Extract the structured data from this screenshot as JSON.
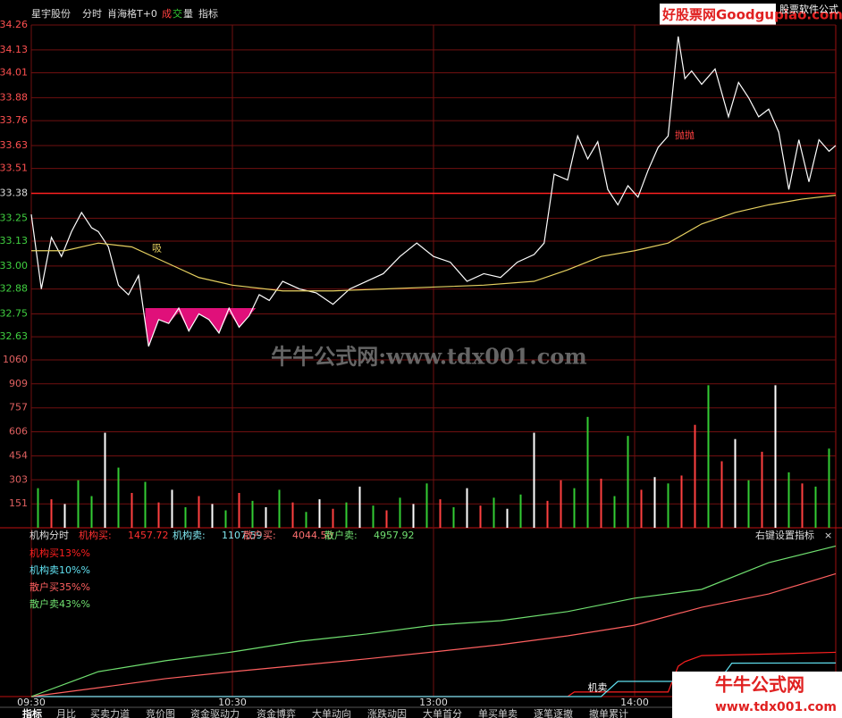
{
  "header": {
    "stock": "星宇股份",
    "view": "分时",
    "formula": "肖海格T+0",
    "volume_chars": [
      "成",
      "交",
      "量"
    ],
    "indicator": "指标",
    "site": "好股票网Goodgupiao.com",
    "site_note": "股票软件公式"
  },
  "watermark": "牛牛公式网:www.tdx001.com",
  "logo": {
    "name": "牛牛公式网",
    "url": "www.tdx001.com"
  },
  "tabs": [
    "指标",
    "月比",
    "买卖力道",
    "竞价图",
    "资金驱动力",
    "资金博弈",
    "大单动向",
    "涨跌动因",
    "大单首分",
    "单买单卖",
    "逐笔逐撤",
    "撤单累计"
  ],
  "chart_data": [
    {
      "type": "line",
      "xlim": [
        0,
        240
      ],
      "ylim": [
        32.5,
        34.26
      ],
      "yticks": [
        34.26,
        34.13,
        34.01,
        33.88,
        33.76,
        33.63,
        33.51,
        33.38,
        33.25,
        33.13,
        {
          "value": 33,
          "label": "33.00"
        },
        32.88,
        32.75,
        32.63
      ],
      "prev_close": 33.38,
      "grid": true,
      "series": [
        {
          "color": "#ffffff",
          "x": [
            0,
            3,
            6,
            9,
            12,
            15,
            18,
            20,
            23,
            26,
            29,
            32,
            35,
            38,
            41,
            44,
            47,
            50,
            53,
            56,
            59,
            62,
            65,
            68,
            71,
            75,
            80,
            85,
            90,
            95,
            100,
            105,
            110,
            115,
            120,
            125,
            130,
            135,
            140,
            145,
            150,
            153,
            156,
            160,
            163,
            166,
            169,
            172,
            175,
            178,
            181,
            184,
            187,
            190,
            193,
            195,
            197,
            200,
            204,
            208,
            211,
            214,
            217,
            220,
            223,
            226,
            229,
            232,
            235,
            238,
            240
          ],
          "values": [
            33.27,
            32.88,
            33.15,
            33.05,
            33.18,
            33.28,
            33.2,
            33.18,
            33.1,
            32.9,
            32.85,
            32.95,
            32.58,
            32.72,
            32.7,
            32.78,
            32.66,
            32.75,
            32.72,
            32.65,
            32.78,
            32.68,
            32.74,
            32.85,
            32.82,
            32.92,
            32.88,
            32.86,
            32.8,
            32.88,
            32.92,
            32.96,
            33.05,
            33.12,
            33.05,
            33.02,
            32.92,
            32.96,
            32.94,
            33.02,
            33.06,
            33.12,
            33.48,
            33.45,
            33.68,
            33.56,
            33.65,
            33.4,
            33.32,
            33.42,
            33.36,
            33.5,
            33.62,
            33.68,
            34.2,
            33.98,
            34.02,
            33.95,
            34.03,
            33.78,
            33.96,
            33.88,
            33.78,
            33.82,
            33.7,
            33.4,
            33.66,
            33.44,
            33.66,
            33.6,
            33.63
          ]
        },
        {
          "color": "#e6d060",
          "x": [
            0,
            10,
            20,
            30,
            40,
            50,
            60,
            75,
            90,
            105,
            120,
            135,
            150,
            160,
            170,
            180,
            190,
            200,
            210,
            220,
            230,
            240
          ],
          "values": [
            33.08,
            33.08,
            33.12,
            33.1,
            33.02,
            32.94,
            32.9,
            32.87,
            32.87,
            32.88,
            32.89,
            32.9,
            32.92,
            32.98,
            33.05,
            33.08,
            33.12,
            33.22,
            33.28,
            33.32,
            33.35,
            33.37
          ]
        }
      ],
      "highlight": {
        "color": "#e0107a",
        "level": 32.78,
        "x": [
          34,
          35,
          38,
          41,
          44,
          47,
          50,
          53,
          56,
          59,
          62,
          65,
          67
        ],
        "values": [
          32.7,
          32.58,
          32.72,
          32.7,
          32.76,
          32.66,
          32.75,
          32.72,
          32.65,
          32.76,
          32.68,
          32.74,
          32.78
        ]
      },
      "annotations": [
        {
          "text": "吸",
          "x": 36,
          "y": 33.09,
          "color": "#e6d060"
        },
        {
          "text": "抛抛",
          "x": 192,
          "y": 33.68,
          "color": "#ff4040"
        }
      ]
    },
    {
      "type": "bar",
      "xlim": [
        0,
        240
      ],
      "ylim": [
        0,
        1060
      ],
      "yticks": [
        1060,
        909,
        757,
        606,
        454,
        303,
        151
      ],
      "grid": true,
      "x": [
        2,
        6,
        10,
        14,
        18,
        22,
        26,
        30,
        34,
        38,
        42,
        46,
        50,
        54,
        58,
        62,
        66,
        70,
        74,
        78,
        82,
        86,
        90,
        94,
        98,
        102,
        106,
        110,
        114,
        118,
        122,
        126,
        130,
        134,
        138,
        142,
        146,
        150,
        154,
        158,
        162,
        166,
        170,
        174,
        178,
        182,
        186,
        190,
        194,
        198,
        202,
        206,
        210,
        214,
        218,
        222,
        226,
        230,
        234,
        238
      ],
      "values": [
        250,
        180,
        150,
        300,
        200,
        600,
        380,
        220,
        290,
        160,
        240,
        130,
        200,
        150,
        110,
        220,
        170,
        130,
        240,
        160,
        100,
        180,
        120,
        160,
        260,
        140,
        110,
        190,
        150,
        280,
        180,
        130,
        250,
        140,
        190,
        120,
        210,
        600,
        170,
        300,
        250,
        700,
        310,
        200,
        580,
        240,
        320,
        280,
        330,
        650,
        900,
        420,
        560,
        300,
        480,
        900,
        350,
        280,
        260,
        500
      ],
      "colors": [
        "#33cc33",
        "#ff4040",
        "#ffffff",
        "#33cc33",
        "#33cc33",
        "#ffffff",
        "#33cc33",
        "#ff4040",
        "#33cc33",
        "#ff4040",
        "#ffffff",
        "#33cc33",
        "#ff4040",
        "#ffffff",
        "#33cc33",
        "#ff4040",
        "#33cc33",
        "#ffffff",
        "#33cc33",
        "#ff4040",
        "#33cc33",
        "#ffffff",
        "#ff4040",
        "#33cc33",
        "#ffffff",
        "#33cc33",
        "#ff4040",
        "#33cc33",
        "#ffffff",
        "#33cc33",
        "#ff4040",
        "#33cc33",
        "#ffffff",
        "#ff4040",
        "#33cc33",
        "#ffffff",
        "#33cc33",
        "#ffffff",
        "#ff4040",
        "#ff4040",
        "#33cc33",
        "#33cc33",
        "#ff4040",
        "#33cc33",
        "#33cc33",
        "#ff4040",
        "#ffffff",
        "#33cc33",
        "#ff4040",
        "#ff4040",
        "#33cc33",
        "#ff4040",
        "#ffffff",
        "#33cc33",
        "#ff4040",
        "#ffffff",
        "#33cc33",
        "#ff4040",
        "#33cc33",
        "#33cc33"
      ]
    },
    {
      "type": "line",
      "title": "机构分时",
      "xlim": [
        0,
        240
      ],
      "ylim": [
        0,
        5000
      ],
      "xticks": [
        {
          "value": 0,
          "label": "09:30"
        },
        {
          "value": 60,
          "label": "10:30"
        },
        {
          "value": 120,
          "label": "13:00"
        },
        {
          "value": 180,
          "label": "14:00"
        }
      ],
      "readouts": [
        {
          "label": "机构买:",
          "value": "1457.72",
          "color": "#ff3030"
        },
        {
          "label": "机构卖:",
          "value": "1107.59",
          "color": "#80e8f0"
        },
        {
          "label": "散户买:",
          "value": "4044.50",
          "color": "#ff7070"
        },
        {
          "label": "散户卖:",
          "value": "4957.92",
          "color": "#70e070"
        }
      ],
      "settings_label": "右键设置指标",
      "close_label": "×",
      "series": [
        {
          "name": "机构买13%%",
          "color": "#ff2020",
          "x": [
            0,
            160,
            162,
            190,
            193,
            195,
            200,
            220,
            240
          ],
          "values": [
            0,
            0,
            150,
            150,
            1000,
            1150,
            1350,
            1400,
            1457.72
          ]
        },
        {
          "name": "机构卖10%%",
          "color": "#60e0f0",
          "x": [
            0,
            170,
            175,
            205,
            209,
            240
          ],
          "values": [
            0,
            0,
            500,
            500,
            1100,
            1107.59
          ]
        },
        {
          "name": "散户买35%%",
          "color": "#ff6060",
          "x": [
            0,
            20,
            40,
            60,
            80,
            100,
            120,
            140,
            160,
            180,
            200,
            220,
            240
          ],
          "values": [
            0,
            290,
            590,
            820,
            1030,
            1240,
            1470,
            1710,
            2000,
            2350,
            2940,
            3380,
            4044.5
          ]
        },
        {
          "name": "散户卖43%%",
          "color": "#70e070",
          "x": [
            0,
            20,
            40,
            60,
            80,
            100,
            120,
            140,
            160,
            180,
            200,
            220,
            240
          ],
          "values": [
            0,
            820,
            1180,
            1470,
            1820,
            2060,
            2350,
            2500,
            2800,
            3240,
            3530,
            4410,
            4957.92
          ]
        }
      ],
      "annotations": [
        {
          "text": "机卖",
          "x": 166,
          "y": 280,
          "color": "#ffffff"
        }
      ]
    }
  ]
}
